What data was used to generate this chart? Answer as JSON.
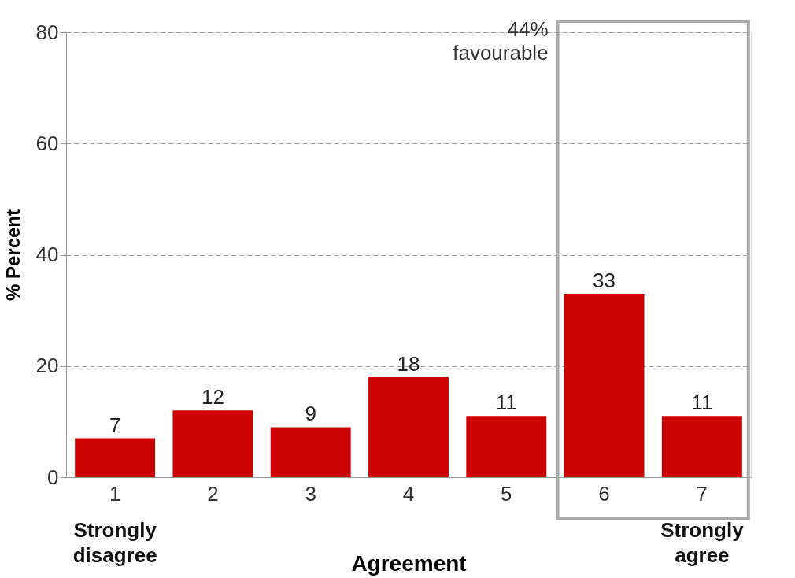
{
  "chart_data": {
    "type": "bar",
    "xlabel": "Agreement",
    "ylabel": "% Percent",
    "categories": [
      "1",
      "2",
      "3",
      "4",
      "5",
      "6",
      "7"
    ],
    "values": [
      7,
      12,
      9,
      18,
      11,
      33,
      11
    ],
    "color": "#cc0000",
    "ylim": [
      0,
      80
    ],
    "yticks": [
      0,
      20,
      40,
      60,
      80
    ],
    "grid": "y",
    "data_labels": true,
    "annotations": [
      "44% favourable",
      "Strongly disagree",
      "Strongly agree"
    ]
  }
}
